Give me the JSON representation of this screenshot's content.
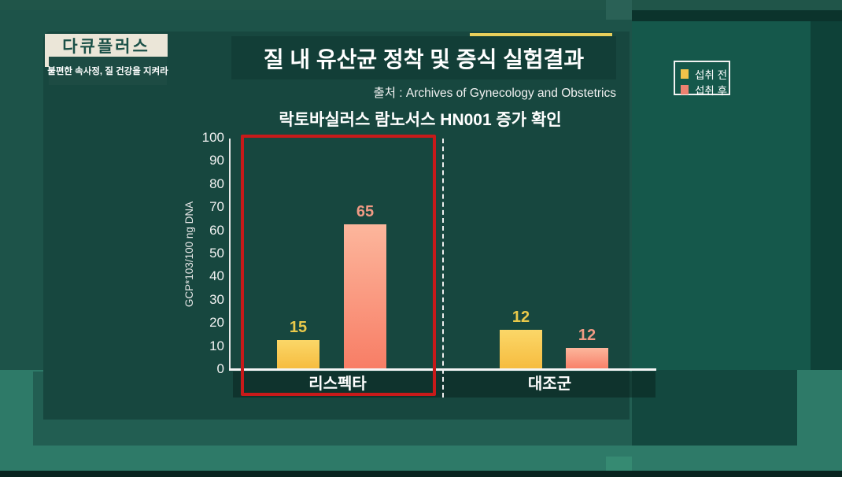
{
  "badge": {
    "title": "다큐플러스",
    "subtitle": "불편한 속사정, 질 건강을 지켜라"
  },
  "header": {
    "title": "질 내 유산균 정착 및 증식 실험결과",
    "source": "출처 : Archives of Gynecology and Obstetrics"
  },
  "legend": {
    "position": "top-right",
    "items": [
      {
        "label": "섭취 전",
        "color": "#f2c24a"
      },
      {
        "label": "섭취 후",
        "color": "#ee8170"
      }
    ]
  },
  "chart_data": {
    "type": "bar",
    "title": "락토바실러스 람노서스 HN001 증가 확인",
    "xlabel": "",
    "ylabel": "GCP*103/100 ng DNA",
    "ylim": [
      0,
      100
    ],
    "yticks": [
      0,
      10,
      20,
      30,
      40,
      50,
      60,
      70,
      80,
      90,
      100
    ],
    "grid": false,
    "categories": [
      "리스펙타",
      "대조군"
    ],
    "series": [
      {
        "name": "섭취 전",
        "values": [
          15,
          12
        ],
        "drawn_values": [
          13,
          17.5
        ],
        "color_top": "#fbd768",
        "color_bottom": "#f6bb3e",
        "label_color": "#eac94a"
      },
      {
        "name": "섭취 후",
        "values": [
          65,
          12
        ],
        "drawn_values": [
          63,
          9.5
        ],
        "color_top": "#fcb69c",
        "color_bottom": "#f87d65",
        "label_color": "#f09a84"
      }
    ],
    "highlight": {
      "category": "리스펙타",
      "style": "red-outline",
      "color": "#c81a1a"
    },
    "separator": {
      "style": "dashed-vertical-line",
      "color": "#f0f0f0"
    },
    "legend_position": "outside-top-right"
  }
}
